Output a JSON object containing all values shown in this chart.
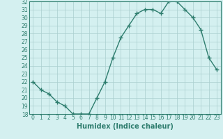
{
  "title": "",
  "xlabel": "Humidex (Indice chaleur)",
  "ylabel": "",
  "x": [
    0,
    1,
    2,
    3,
    4,
    5,
    6,
    7,
    8,
    9,
    10,
    11,
    12,
    13,
    14,
    15,
    16,
    17,
    18,
    19,
    20,
    21,
    22,
    23
  ],
  "y": [
    22,
    21,
    20.5,
    19.5,
    19,
    18,
    18,
    18,
    20,
    22,
    25,
    27.5,
    29,
    30.5,
    31,
    31,
    30.5,
    32,
    32,
    31,
    30,
    28.5,
    25,
    23.5
  ],
  "ylim": [
    18,
    32
  ],
  "xlim": [
    -0.5,
    23.5
  ],
  "yticks": [
    18,
    19,
    20,
    21,
    22,
    23,
    24,
    25,
    26,
    27,
    28,
    29,
    30,
    31,
    32
  ],
  "xticks": [
    0,
    1,
    2,
    3,
    4,
    5,
    6,
    7,
    8,
    9,
    10,
    11,
    12,
    13,
    14,
    15,
    16,
    17,
    18,
    19,
    20,
    21,
    22,
    23
  ],
  "line_color": "#2e7d6e",
  "marker": "+",
  "marker_size": 4,
  "bg_color": "#d4f0f0",
  "grid_color": "#aacece",
  "tick_label_fontsize": 5.5,
  "xlabel_fontsize": 7,
  "line_width": 1.0
}
